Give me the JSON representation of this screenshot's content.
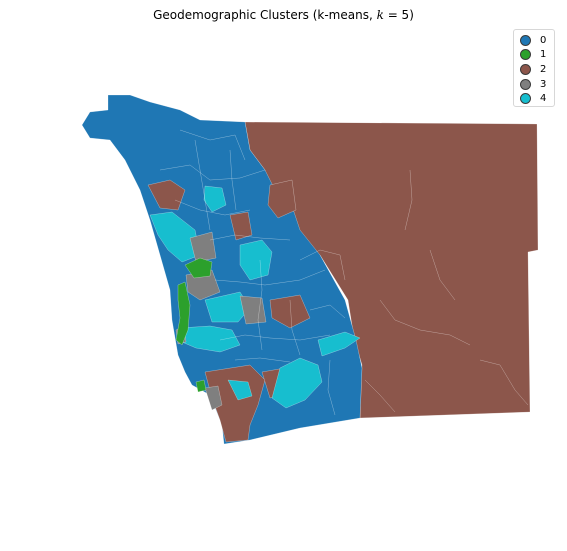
{
  "figure": {
    "title_prefix": "Geodemographic Clusters (k-means, ",
    "title_var": "k",
    "title_suffix": " = 5)"
  },
  "colors": {
    "cluster_0": "#1f77b4",
    "cluster_1": "#2ca02c",
    "cluster_2": "#8c564b",
    "cluster_3": "#7f7f7f",
    "cluster_4": "#17becf",
    "boundary": "#ffffff"
  },
  "legend": {
    "items": [
      {
        "label": "0",
        "color": "#1f77b4"
      },
      {
        "label": "1",
        "color": "#2ca02c"
      },
      {
        "label": "2",
        "color": "#8c564b"
      },
      {
        "label": "3",
        "color": "#7f7f7f"
      },
      {
        "label": "4",
        "color": "#17becf"
      }
    ]
  }
}
